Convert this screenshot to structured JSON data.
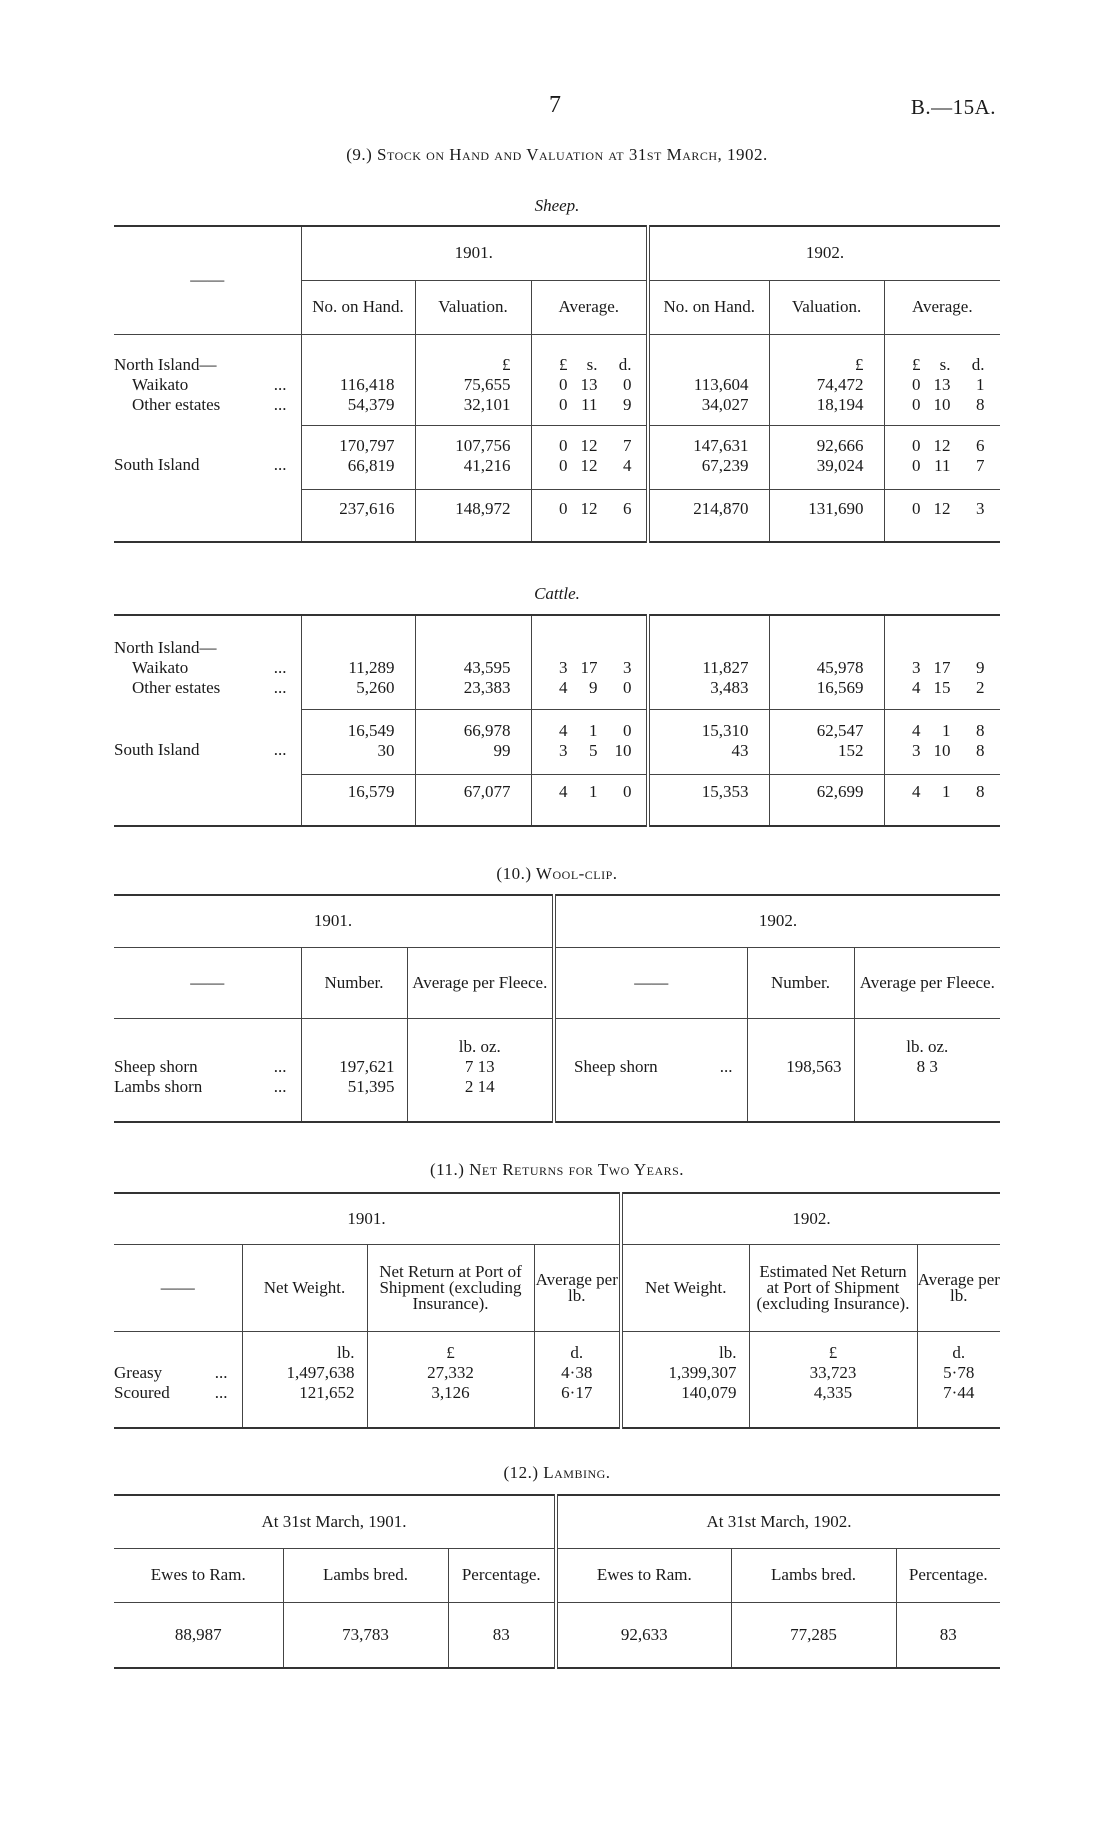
{
  "page": {
    "number": "7",
    "reference": "B.—15A."
  },
  "stock": {
    "title": "(9.) Stock on Hand and Valuation at 31st March, 1902.",
    "sheep": {
      "subtitle": "Sheep.",
      "header": [
        [
          {
            "text": "——",
            "rowspan": 2
          },
          {
            "text": "1901.",
            "span": 3
          },
          {
            "text": "1902.",
            "span": 3
          }
        ],
        [
          {
            "text": "No. on Hand."
          },
          {
            "text": "Valuation."
          },
          {
            "text": "Average."
          },
          {
            "text": "No. on Hand."
          },
          {
            "text": "Valuation."
          },
          {
            "text": "Average."
          }
        ]
      ],
      "groups": [
        [
          [
            {
              "label": "North Island—"
            },
            "",
            "£",
            [
              "£",
              "s.",
              "d."
            ],
            "",
            "£",
            [
              "£",
              "s.",
              "d."
            ]
          ],
          [
            {
              "label": "Waikato",
              "dots": "...",
              "sub": true
            },
            "116,418",
            "75,655",
            [
              "0",
              "13",
              "0"
            ],
            "113,604",
            "74,472",
            [
              "0",
              "13",
              "1"
            ]
          ],
          [
            {
              "label": "Other estates",
              "dots": "...",
              "sub": true
            },
            "54,379",
            "32,101",
            [
              "0",
              "11",
              "9"
            ],
            "34,027",
            "18,194",
            [
              "0",
              "10",
              "8"
            ]
          ]
        ],
        [
          [
            {
              "label": ""
            },
            "170,797",
            "107,756",
            [
              "0",
              "12",
              "7"
            ],
            "147,631",
            "92,666",
            [
              "0",
              "12",
              "6"
            ]
          ],
          [
            {
              "label": "South Island",
              "dots": "..."
            },
            "66,819",
            "41,216",
            [
              "0",
              "12",
              "4"
            ],
            "67,239",
            "39,024",
            [
              "0",
              "11",
              "7"
            ]
          ]
        ],
        [
          [
            {
              "label": ""
            },
            "237,616",
            "148,972",
            [
              "0",
              "12",
              "6"
            ],
            "214,870",
            "131,690",
            [
              "0",
              "12",
              "3"
            ]
          ]
        ]
      ]
    },
    "cattle": {
      "subtitle": "Cattle.",
      "header": [],
      "groups": [
        [
          [
            {
              "label": "North Island—"
            },
            "",
            "",
            "",
            "",
            "",
            ""
          ],
          [
            {
              "label": "Waikato",
              "dots": "...",
              "sub": true
            },
            "11,289",
            "43,595",
            [
              "3",
              "17",
              "3"
            ],
            "11,827",
            "45,978",
            [
              "3",
              "17",
              "9"
            ]
          ],
          [
            {
              "label": "Other estates",
              "dots": "...",
              "sub": true
            },
            "5,260",
            "23,383",
            [
              "4",
              "9",
              "0"
            ],
            "3,483",
            "16,569",
            [
              "4",
              "15",
              "2"
            ]
          ]
        ],
        [
          [
            {
              "label": ""
            },
            "16,549",
            "66,978",
            [
              "4",
              "1",
              "0"
            ],
            "15,310",
            "62,547",
            [
              "4",
              "1",
              "8"
            ]
          ],
          [
            {
              "label": "South Island",
              "dots": "..."
            },
            "30",
            "99",
            [
              "3",
              "5",
              "10"
            ],
            "43",
            "152",
            [
              "3",
              "10",
              "8"
            ]
          ]
        ],
        [
          [
            {
              "label": ""
            },
            "16,579",
            "67,077",
            [
              "4",
              "1",
              "0"
            ],
            "15,353",
            "62,699",
            [
              "4",
              "1",
              "8"
            ]
          ]
        ]
      ]
    }
  },
  "wool": {
    "title": "(10.) Wool-clip.",
    "header": [
      [
        {
          "text": "1901.",
          "span": 3
        },
        {
          "text": "1902.",
          "span": 3
        }
      ],
      [
        {
          "text": "——"
        },
        {
          "text": "Number."
        },
        {
          "text": "Average per Fleece."
        },
        {
          "text": "——"
        },
        {
          "text": "Number."
        },
        {
          "text": "Average per Fleece."
        }
      ]
    ],
    "groups": [
      [
        [
          {
            "label": ""
          },
          "",
          "lb. oz.",
          {
            "label": ""
          },
          "",
          "lb. oz."
        ],
        [
          {
            "label": "Sheep shorn",
            "dots": "..."
          },
          "197,621",
          "7 13",
          {
            "label": "Sheep shorn",
            "dots": "..."
          },
          "198,563",
          "8 3"
        ],
        [
          {
            "label": "Lambs shorn",
            "dots": "..."
          },
          "51,395",
          "2 14",
          {
            "label": ""
          },
          "",
          ""
        ]
      ]
    ]
  },
  "net_returns": {
    "title": "(11.) Net Returns for Two Years.",
    "header": [
      [
        {
          "text": "1901.",
          "span": 4
        },
        {
          "text": "1902.",
          "span": 3
        }
      ],
      [
        {
          "text": "——"
        },
        {
          "text": "Net Weight."
        },
        {
          "text": "Net Return at Port of Shipment (excluding Insurance)."
        },
        {
          "text": "Average per lb."
        },
        {
          "text": "Net Weight."
        },
        {
          "text": "Estimated Net Return at Port of Shipment (excluding Insurance)."
        },
        {
          "text": "Average per lb."
        }
      ]
    ],
    "groups": [
      [
        [
          {
            "label": ""
          },
          "lb.",
          "£",
          "d.",
          "lb.",
          "£",
          "d."
        ],
        [
          {
            "label": "Greasy",
            "dots": "..."
          },
          "1,497,638",
          "27,332",
          "4·38",
          "1,399,307",
          "33,723",
          "5·78"
        ],
        [
          {
            "label": "Scoured",
            "dots": "..."
          },
          "121,652",
          "3,126",
          "6·17",
          "140,079",
          "4,335",
          "7·44"
        ]
      ]
    ]
  },
  "lambing": {
    "title": "(12.) Lambing.",
    "header": [
      [
        {
          "text": "At 31st March, 1901.",
          "span": 3
        },
        {
          "text": "At 31st March, 1902.",
          "span": 3
        }
      ],
      [
        {
          "text": "Ewes to Ram."
        },
        {
          "text": "Lambs bred."
        },
        {
          "text": "Percentage."
        },
        {
          "text": "Ewes to Ram."
        },
        {
          "text": "Lambs bred."
        },
        {
          "text": "Percentage."
        }
      ]
    ],
    "groups": [
      [
        [
          "88,987",
          "73,783",
          "83",
          "92,633",
          "77,285",
          "83"
        ]
      ]
    ]
  }
}
